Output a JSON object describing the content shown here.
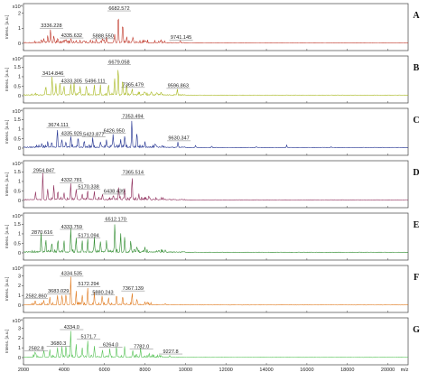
{
  "chart_data": [
    {
      "type": "line",
      "panel": "A",
      "color": "#c0392b",
      "ylabel": "Intens. [a.u.]",
      "exponent": "x10⁴",
      "yticks": [
        0,
        1,
        2
      ],
      "ylim": [
        0,
        2.4
      ],
      "xlim": [
        2000,
        21000
      ],
      "peaks": [
        {
          "label": "3336.228",
          "x": 3336.228,
          "y": 0.9
        },
        {
          "label": "4335.632",
          "x": 4335.632,
          "y": 0.25
        },
        {
          "label": "5888.550",
          "x": 5888.55,
          "y": 0.2
        },
        {
          "label": "6682.572",
          "x": 6682.572,
          "y": 2.05
        },
        {
          "label": "9741.145",
          "x": 9741.145,
          "y": 0.12
        }
      ],
      "extra_peaks": [
        [
          3000,
          0.3
        ],
        [
          3200,
          0.45
        ],
        [
          3500,
          0.5
        ],
        [
          3700,
          0.25
        ],
        [
          4100,
          0.2
        ],
        [
          4600,
          0.15
        ],
        [
          5000,
          0.18
        ],
        [
          5300,
          0.2
        ],
        [
          5600,
          0.15
        ],
        [
          6100,
          0.35
        ],
        [
          6500,
          0.6
        ],
        [
          6900,
          1.3
        ],
        [
          7100,
          0.4
        ],
        [
          7400,
          0.3
        ],
        [
          8000,
          0.1
        ]
      ]
    },
    {
      "type": "line",
      "panel": "B",
      "color": "#a8b820",
      "ylabel": "Intens. [a.u.]",
      "exponent": "x10⁴",
      "yticks": [
        0.0,
        0.5,
        1.0,
        1.5
      ],
      "ylim": [
        0,
        1.9
      ],
      "xlim": [
        2000,
        21000
      ],
      "peaks": [
        {
          "label": "3414.846",
          "x": 3414.846,
          "y": 0.95
        },
        {
          "label": "4333.305",
          "x": 4333.305,
          "y": 0.55
        },
        {
          "label": "5496.111",
          "x": 5496.111,
          "y": 0.55
        },
        {
          "label": "6679.058",
          "x": 6679.058,
          "y": 1.55
        },
        {
          "label": "7365.479",
          "x": 7365.479,
          "y": 0.35
        },
        {
          "label": "9596.863",
          "x": 9596.863,
          "y": 0.3
        }
      ],
      "extra_peaks": [
        [
          3100,
          0.5
        ],
        [
          3600,
          0.6
        ],
        [
          3800,
          0.7
        ],
        [
          4000,
          0.5
        ],
        [
          4500,
          0.6
        ],
        [
          4800,
          0.45
        ],
        [
          5100,
          0.5
        ],
        [
          5800,
          0.4
        ],
        [
          6200,
          0.5
        ],
        [
          6500,
          0.9
        ],
        [
          6900,
          0.8
        ],
        [
          7100,
          0.5
        ],
        [
          8000,
          0.15
        ],
        [
          8600,
          0.1
        ]
      ]
    },
    {
      "type": "line",
      "panel": "C",
      "color": "#1f2f8f",
      "ylabel": "Intens. [a.u.]",
      "exponent": "x10⁴",
      "yticks": [
        0.0,
        0.5,
        1.0,
        1.5
      ],
      "ylim": [
        0,
        1.9
      ],
      "xlim": [
        2000,
        21000
      ],
      "peaks": [
        {
          "label": "3674.111",
          "x": 3674.111,
          "y": 1.0
        },
        {
          "label": "4335.926",
          "x": 4335.926,
          "y": 0.55
        },
        {
          "label": "5423.877",
          "x": 5423.877,
          "y": 0.5
        },
        {
          "label": "6426.950",
          "x": 6426.95,
          "y": 0.7
        },
        {
          "label": "7353.494",
          "x": 7353.494,
          "y": 1.45
        },
        {
          "label": "9630.347",
          "x": 9630.347,
          "y": 0.3
        }
      ],
      "extra_peaks": [
        [
          2900,
          0.2
        ],
        [
          3200,
          0.35
        ],
        [
          3400,
          0.25
        ],
        [
          3900,
          0.4
        ],
        [
          4100,
          0.3
        ],
        [
          4700,
          0.5
        ],
        [
          5000,
          0.35
        ],
        [
          5800,
          0.3
        ],
        [
          6100,
          0.4
        ],
        [
          6800,
          0.45
        ],
        [
          7000,
          0.6
        ],
        [
          7600,
          0.8
        ],
        [
          8000,
          0.3
        ],
        [
          8500,
          0.2
        ],
        [
          10500,
          0.1
        ],
        [
          11300,
          0.08
        ],
        [
          13500,
          0.05
        ],
        [
          15000,
          0.12
        ],
        [
          17200,
          0.05
        ]
      ]
    },
    {
      "type": "line",
      "panel": "D",
      "color": "#8e2c5a",
      "ylabel": "Intens. [a.u.]",
      "exponent": "x10⁴",
      "yticks": [
        0.0,
        0.5,
        1.0,
        1.5
      ],
      "ylim": [
        0,
        1.9
      ],
      "xlim": [
        2000,
        21000
      ],
      "peaks": [
        {
          "label": "2954.847",
          "x": 2954.847,
          "y": 1.35
        },
        {
          "label": "4332.781",
          "x": 4332.781,
          "y": 0.85
        },
        {
          "label": "5170.338",
          "x": 5170.338,
          "y": 0.5
        },
        {
          "label": "6438.439",
          "x": 6438.439,
          "y": 0.25
        },
        {
          "label": "7365.514",
          "x": 7365.514,
          "y": 1.25
        }
      ],
      "extra_peaks": [
        [
          2600,
          0.3
        ],
        [
          3200,
          0.6
        ],
        [
          3500,
          0.8
        ],
        [
          3700,
          0.5
        ],
        [
          4000,
          0.4
        ],
        [
          4600,
          0.5
        ],
        [
          4900,
          0.3
        ],
        [
          5500,
          0.35
        ],
        [
          5900,
          0.3
        ],
        [
          6700,
          0.5
        ],
        [
          7000,
          0.6
        ],
        [
          7700,
          0.3
        ],
        [
          8200,
          0.15
        ],
        [
          9000,
          0.05
        ]
      ]
    },
    {
      "type": "line",
      "panel": "E",
      "color": "#2e8b2e",
      "ylabel": "Intens. [a.u.]",
      "exponent": "x10⁴",
      "yticks": [
        0.0,
        0.5,
        1.0,
        1.5
      ],
      "ylim": [
        0,
        1.9
      ],
      "xlim": [
        2000,
        21000
      ],
      "peaks": [
        {
          "label": "2870.616",
          "x": 2870.616,
          "y": 0.85
        },
        {
          "label": "4333.759",
          "x": 4333.759,
          "y": 1.15
        },
        {
          "label": "5171.094",
          "x": 5171.094,
          "y": 0.7
        },
        {
          "label": "6512.170",
          "x": 6512.17,
          "y": 1.55
        }
      ],
      "extra_peaks": [
        [
          3100,
          0.6
        ],
        [
          3400,
          0.5
        ],
        [
          3700,
          0.7
        ],
        [
          4000,
          0.6
        ],
        [
          4600,
          0.8
        ],
        [
          4900,
          0.6
        ],
        [
          5500,
          0.7
        ],
        [
          5800,
          0.5
        ],
        [
          6100,
          0.6
        ],
        [
          6800,
          1.0
        ],
        [
          7000,
          0.8
        ],
        [
          7300,
          0.6
        ],
        [
          7600,
          0.3
        ],
        [
          8000,
          0.2
        ],
        [
          9000,
          0.1
        ]
      ]
    },
    {
      "type": "line",
      "panel": "F",
      "color": "#e07b20",
      "ylabel": "Intens. [a.u.]",
      "exponent": "x10⁴",
      "yticks": [
        0,
        1,
        2,
        3
      ],
      "ylim": [
        0,
        3.7
      ],
      "xlim": [
        2000,
        21000
      ],
      "peaks": [
        {
          "label": "2582.860",
          "x": 2582.86,
          "y": 0.5
        },
        {
          "label": "3683.029",
          "x": 3683.029,
          "y": 1.0
        },
        {
          "label": "4334.535",
          "x": 4334.535,
          "y": 2.8
        },
        {
          "label": "5172.294",
          "x": 5172.294,
          "y": 1.75
        },
        {
          "label": "5880.243",
          "x": 5880.243,
          "y": 0.9
        },
        {
          "label": "7367.139",
          "x": 7367.139,
          "y": 1.3
        }
      ],
      "extra_peaks": [
        [
          3000,
          0.5
        ],
        [
          3300,
          0.8
        ],
        [
          3900,
          0.9
        ],
        [
          4100,
          1.2
        ],
        [
          4600,
          1.5
        ],
        [
          4900,
          1.0
        ],
        [
          5500,
          1.2
        ],
        [
          6200,
          0.8
        ],
        [
          6600,
          1.1
        ],
        [
          6900,
          0.9
        ],
        [
          7600,
          0.6
        ],
        [
          8000,
          0.3
        ],
        [
          9000,
          0.15
        ]
      ]
    },
    {
      "type": "line",
      "panel": "G",
      "color": "#55c255",
      "ylabel": "Intens. [a.u.]",
      "exponent": "x10⁴",
      "yticks": [
        0,
        1,
        2,
        3
      ],
      "ylim": [
        0,
        3.7
      ],
      "xlim": [
        2000,
        21000
      ],
      "xticks": [
        2000,
        4000,
        6000,
        8000,
        10000,
        12000,
        14000,
        16000,
        18000,
        20000
      ],
      "xunit": "m/z",
      "peaks": [
        {
          "label": "2582.8",
          "x": 2582.8,
          "y": 0.5
        },
        {
          "label": "3680.3",
          "x": 3680.3,
          "y": 1.0
        },
        {
          "label": "4334.0",
          "x": 4334.0,
          "y": 2.7
        },
        {
          "label": "5171.7",
          "x": 5171.7,
          "y": 1.7
        },
        {
          "label": "6264.0",
          "x": 6264.0,
          "y": 0.9
        },
        {
          "label": "7782.0",
          "x": 7782.0,
          "y": 0.7
        },
        {
          "label": "9227.8",
          "x": 9227.8,
          "y": 0.2
        }
      ],
      "extra_peaks": [
        [
          3000,
          0.6
        ],
        [
          3300,
          0.8
        ],
        [
          3900,
          1.1
        ],
        [
          4100,
          1.3
        ],
        [
          4600,
          1.4
        ],
        [
          4900,
          1.0
        ],
        [
          5500,
          1.1
        ],
        [
          5900,
          0.8
        ],
        [
          6600,
          1.0
        ],
        [
          7000,
          0.9
        ],
        [
          7400,
          0.7
        ],
        [
          8200,
          0.3
        ],
        [
          8800,
          0.2
        ]
      ]
    }
  ]
}
